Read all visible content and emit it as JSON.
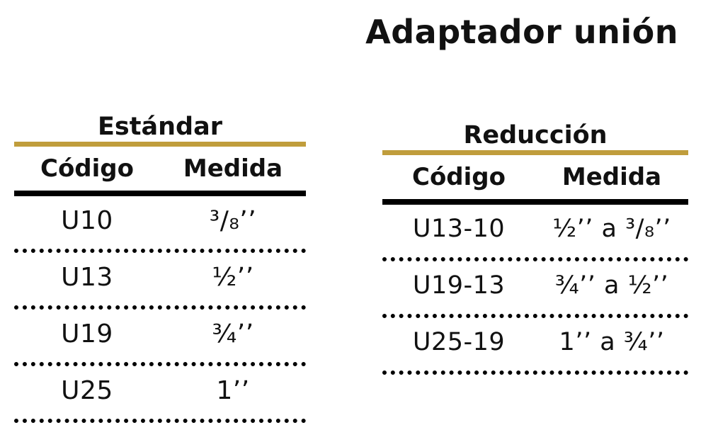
{
  "title": "Adaptador unión",
  "standard": {
    "title": "Estándar",
    "headers": {
      "code": "Código",
      "size": "Medida"
    },
    "rows": [
      {
        "code": "U10",
        "size": "³/₈’’"
      },
      {
        "code": "U13",
        "size": "½’’"
      },
      {
        "code": "U19",
        "size": "¾’’"
      },
      {
        "code": "U25",
        "size": "1’’"
      }
    ]
  },
  "reduction": {
    "title": "Reducción",
    "headers": {
      "code": "Código",
      "size": "Medida"
    },
    "rows": [
      {
        "code": "U13-10",
        "size": "½’’ a ³/₈’’"
      },
      {
        "code": "U19-13",
        "size": "¾’’ a ½’’"
      },
      {
        "code": "U25-19",
        "size": "1’’ a ¾’’"
      }
    ]
  },
  "colors": {
    "gold_rule": "#c09d3c",
    "black_rule": "#000000",
    "text": "#111111"
  }
}
